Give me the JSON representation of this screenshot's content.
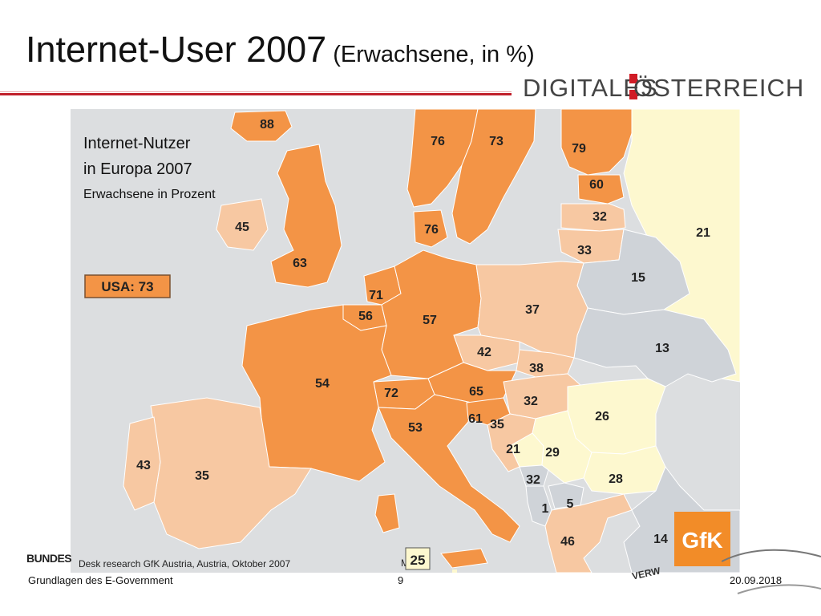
{
  "slide": {
    "title_main": "Internet-User 2007",
    "title_sub": "(Erwachsene, in %)",
    "logo_left": "DIGITALES",
    "logo_right": "ÖSTERREICH",
    "footer_left": "Grundlagen des E-Government",
    "footer_page": "9",
    "footer_date": "20.09.2018",
    "bottom_left_fragment": "BUNDES",
    "bottom_right_fragment": "VERW"
  },
  "map": {
    "title_line1": "Internet-Nutzer",
    "title_line2": "in Europa 2007",
    "subtitle": "Erwachsene in Prozent",
    "usa_label": "USA: 73",
    "source": "Desk research GfK Austria, Austria, Oktober 2007",
    "malta_label": "Malta",
    "malta_value": "25",
    "brand": "GfK",
    "colors": {
      "sea": "#dcdee0",
      "high": "#f39446",
      "mid": "#f7c8a2",
      "low": "#cfd3d8",
      "lowest": "#fdf8cf",
      "border": "#ffffff",
      "gfk": "#f28c28"
    },
    "countries": [
      {
        "name": "Iceland",
        "value": "88"
      },
      {
        "name": "Norway",
        "value": "76"
      },
      {
        "name": "Sweden",
        "value": "73"
      },
      {
        "name": "Finland",
        "value": "79"
      },
      {
        "name": "Estonia",
        "value": "60"
      },
      {
        "name": "Latvia",
        "value": "32"
      },
      {
        "name": "Lithuania",
        "value": "33"
      },
      {
        "name": "Russia",
        "value": "21"
      },
      {
        "name": "Belarus",
        "value": "15"
      },
      {
        "name": "Ukraine",
        "value": "13"
      },
      {
        "name": "Ireland",
        "value": "45"
      },
      {
        "name": "United Kingdom",
        "value": "63"
      },
      {
        "name": "Denmark",
        "value": "76"
      },
      {
        "name": "Netherlands",
        "value": "71"
      },
      {
        "name": "Belgium",
        "value": "56"
      },
      {
        "name": "Germany",
        "value": "57"
      },
      {
        "name": "Poland",
        "value": "37"
      },
      {
        "name": "Czech Republic",
        "value": "42"
      },
      {
        "name": "Slovakia",
        "value": "38"
      },
      {
        "name": "Austria",
        "value": "65"
      },
      {
        "name": "Hungary",
        "value": "32"
      },
      {
        "name": "Romania",
        "value": "26"
      },
      {
        "name": "France",
        "value": "54"
      },
      {
        "name": "Switzerland",
        "value": "72"
      },
      {
        "name": "Italy",
        "value": "53"
      },
      {
        "name": "Slovenia",
        "value": "61"
      },
      {
        "name": "Croatia",
        "value": "35"
      },
      {
        "name": "Bosnia",
        "value": "21"
      },
      {
        "name": "Serbia",
        "value": "29"
      },
      {
        "name": "Montenegro",
        "value": "32"
      },
      {
        "name": "Bulgaria",
        "value": "28"
      },
      {
        "name": "Albania",
        "value": "1"
      },
      {
        "name": "Macedonia",
        "value": "5"
      },
      {
        "name": "Greece",
        "value": "46"
      },
      {
        "name": "Turkey",
        "value": "14"
      },
      {
        "name": "Spain",
        "value": "35"
      },
      {
        "name": "Portugal",
        "value": "43"
      }
    ]
  }
}
